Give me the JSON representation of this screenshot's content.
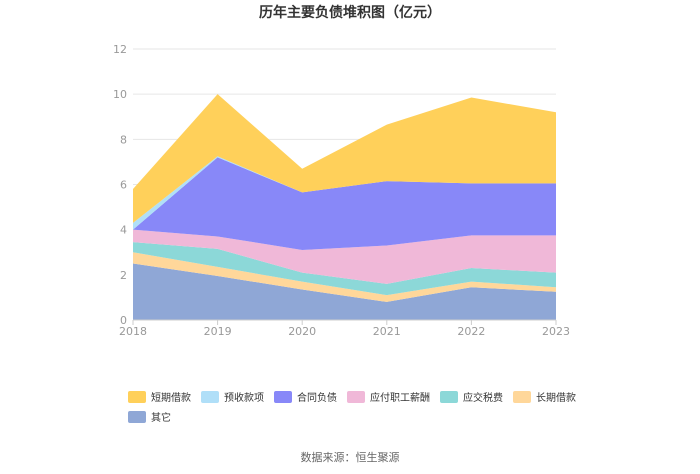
{
  "chart_data": {
    "type": "area",
    "title": "历年主要负债堆积图（亿元）",
    "x": [
      "2018",
      "2019",
      "2020",
      "2021",
      "2022",
      "2023"
    ],
    "ylim": [
      0,
      12
    ],
    "yticks": [
      "0",
      "2",
      "4",
      "6",
      "8",
      "10",
      "12"
    ],
    "stacked": true,
    "grid": true,
    "legend_position": "bottom",
    "series": [
      {
        "name": "其它",
        "color": "#8fa7d6",
        "values": [
          2.5,
          1.95,
          1.35,
          0.8,
          1.45,
          1.25
        ]
      },
      {
        "name": "长期借款",
        "color": "#ffd79a",
        "values": [
          0.5,
          0.4,
          0.35,
          0.3,
          0.25,
          0.2
        ]
      },
      {
        "name": "应交税费",
        "color": "#8cd8d8",
        "values": [
          0.45,
          0.8,
          0.4,
          0.5,
          0.6,
          0.65
        ]
      },
      {
        "name": "应付职工薪酬",
        "color": "#f0b8d8",
        "values": [
          0.55,
          0.55,
          1.0,
          1.7,
          1.45,
          1.65
        ]
      },
      {
        "name": "合同负债",
        "color": "#8888f8",
        "values": [
          0.0,
          3.5,
          2.55,
          2.85,
          2.3,
          2.3
        ]
      },
      {
        "name": "预收款项",
        "color": "#b0dff8",
        "values": [
          0.3,
          0.05,
          0.0,
          0.0,
          0.0,
          0.0
        ]
      },
      {
        "name": "短期借款",
        "color": "#ffd05a",
        "values": [
          1.5,
          2.75,
          1.05,
          2.5,
          3.8,
          3.15
        ]
      }
    ],
    "legend_order": [
      "短期借款",
      "预收款项",
      "合同负债",
      "应付职工薪酬",
      "应交税费",
      "长期借款",
      "其它"
    ]
  },
  "footer": {
    "source": "数据来源：恒生聚源"
  }
}
